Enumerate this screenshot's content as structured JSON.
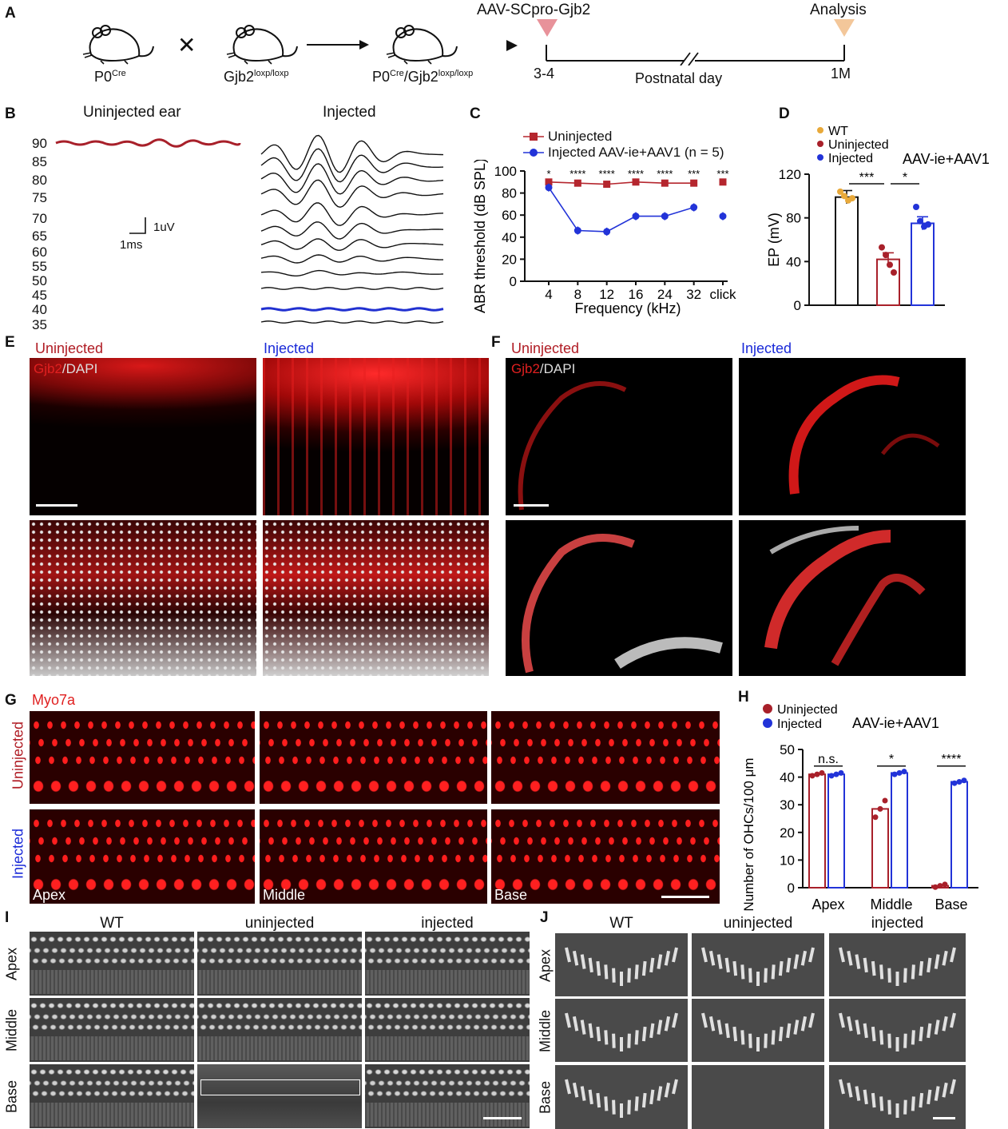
{
  "panels": [
    "A",
    "B",
    "C",
    "D",
    "E",
    "F",
    "G",
    "H",
    "I",
    "J"
  ],
  "A": {
    "strain1": "P0",
    "strain1_sup": "Cre",
    "cross": "✕",
    "strain2": "Gjb2",
    "strain2_sup": "loxp/loxp",
    "strain3": "P0",
    "strain3_sup": "Cre",
    "strain3_mid": "/Gjb2",
    "strain3_sup2": "loxp/loxp",
    "injection": "AAV-SCpro-Gjb2",
    "analysis": "Analysis",
    "day_start": "3-4",
    "day_axis": "Postnatal day",
    "day_end": "1M",
    "colors": {
      "injection": "#e8929a",
      "analysis": "#f3c79a"
    }
  },
  "B": {
    "title_left": "Uninjected ear",
    "title_right": "Injected",
    "levels": [
      "90",
      "85",
      "80",
      "75",
      "70",
      "65",
      "60",
      "55",
      "50",
      "45",
      "40",
      "35"
    ],
    "scale_v": "1uV",
    "scale_t": "1ms",
    "colors": {
      "uninjected": "#a8202a",
      "threshold": "#2030d0"
    }
  },
  "C": {
    "legend": [
      "Uninjected",
      "Injected  AAV-ie+AAV1  (n = 5)"
    ],
    "chart_data": {
      "type": "line",
      "xlabel": "Frequency (kHz)",
      "ylabel": "ABR threshold (dB SPL)",
      "categories": [
        "4",
        "8",
        "12",
        "16",
        "24",
        "32",
        "click"
      ],
      "ylim": [
        0,
        100
      ],
      "yticks": [
        "0",
        "20",
        "40",
        "60",
        "80",
        "100"
      ],
      "series": [
        {
          "name": "Uninjected",
          "values": [
            90,
            89,
            88,
            90,
            89,
            89,
            90
          ],
          "color": "#b5262e"
        },
        {
          "name": "Injected",
          "values": [
            85,
            46,
            45,
            59,
            59,
            67,
            59
          ],
          "color": "#2233d8"
        }
      ],
      "significance": [
        "*",
        "****",
        "****",
        "****",
        "****",
        "***",
        "***"
      ]
    }
  },
  "D": {
    "legend": [
      "WT",
      "Uninjected",
      "Injected"
    ],
    "annot": "AAV-ie+AAV1",
    "chart_data": {
      "type": "bar",
      "ylabel": "EP (mV)",
      "categories": [
        "WT",
        "Uninjected",
        "Injected"
      ],
      "values": [
        99,
        42,
        75
      ],
      "ylim": [
        0,
        120
      ],
      "yticks": [
        "0",
        "40",
        "80",
        "120"
      ],
      "points": [
        [
          104,
          100,
          96,
          98
        ],
        [
          53,
          46,
          37,
          30
        ],
        [
          90,
          77,
          72,
          74
        ]
      ],
      "colors": [
        "#e8a93a",
        "#a8202a",
        "#2233d8"
      ],
      "significance": [
        "***",
        "*"
      ]
    }
  },
  "E": {
    "top_left": "Uninjected",
    "top_right": "Injected",
    "stain_a": "Gjb2",
    "stain_b": "/DAPI"
  },
  "F": {
    "top_left": "Uninjected",
    "top_right": "Injected",
    "stain_a": "Gjb2",
    "stain_b": "/DAPI"
  },
  "G": {
    "stain": "Myo7a",
    "row1": "Uninjected",
    "row2": "Injected",
    "cols": [
      "Apex",
      "Middle",
      "Base"
    ]
  },
  "H": {
    "legend": [
      "Uninjected",
      "Injected"
    ],
    "annot": "AAV-ie+AAV1",
    "chart_data": {
      "type": "bar",
      "ylabel": "Number of OHCs/100 μm",
      "categories": [
        "Apex",
        "Middle",
        "Base"
      ],
      "yticks": [
        "0",
        "10",
        "20",
        "30",
        "40",
        "50"
      ],
      "ylim": [
        0,
        50
      ],
      "series": [
        {
          "name": "Uninjected",
          "values": [
            41,
            28.5,
            0.7
          ],
          "color": "#a8202a"
        },
        {
          "name": "Injected",
          "values": [
            41,
            41.5,
            38.3
          ],
          "color": "#2233d8"
        }
      ],
      "significance": [
        "n.s.",
        "*",
        "****"
      ]
    }
  },
  "I": {
    "cols": [
      "WT",
      "uninjected",
      "injected"
    ],
    "rows": [
      "Apex",
      "Middle",
      "Base"
    ]
  },
  "J": {
    "cols": [
      "WT",
      "uninjected",
      "injected"
    ],
    "rows": [
      "Apex",
      "Middle",
      "Base"
    ]
  }
}
